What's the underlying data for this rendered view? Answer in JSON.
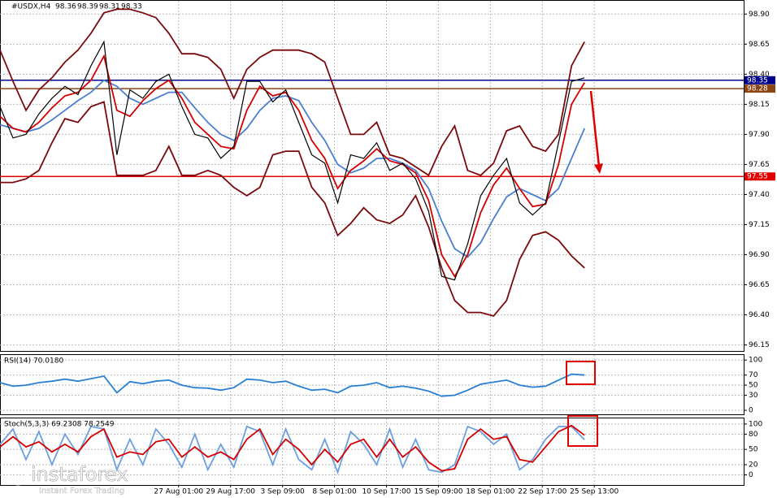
{
  "chart_data": [
    {
      "type": "line",
      "symbol": "#USDX,H4",
      "ohlc": [
        98.36,
        98.39,
        98.31,
        98.33
      ],
      "x": [
        0,
        4,
        8,
        12,
        16,
        20,
        24,
        28,
        32,
        36,
        40,
        44,
        48,
        52,
        56,
        60,
        64,
        68,
        72,
        76,
        80,
        84,
        88,
        92,
        96,
        100,
        104,
        108,
        112,
        116,
        120,
        124,
        128,
        132,
        136,
        140,
        144,
        148,
        152,
        156,
        160,
        164,
        168,
        172,
        176,
        180
      ],
      "xlim": [
        0,
        229
      ],
      "ylim": [
        96.1,
        99.01
      ],
      "yticks": [
        {
          "value": 98.9,
          "label": "98.90"
        },
        {
          "value": 98.65,
          "label": "98.65"
        },
        {
          "value": 98.4,
          "label": "98.40"
        },
        {
          "value": 98.15,
          "label": "98.15"
        },
        {
          "value": 97.9,
          "label": "97.90"
        },
        {
          "value": 97.65,
          "label": "97.65"
        },
        {
          "value": 97.4,
          "label": "97.40"
        },
        {
          "value": 97.15,
          "label": "97.15"
        },
        {
          "value": 96.9,
          "label": "96.90"
        },
        {
          "value": 96.65,
          "label": "96.65"
        },
        {
          "value": 96.4,
          "label": "96.40"
        },
        {
          "value": 96.15,
          "label": "96.15"
        }
      ],
      "grid": true,
      "series": [
        {
          "color": "#7a0a0a",
          "values": [
            98.6,
            98.34,
            98.1,
            98.27,
            98.37,
            98.5,
            98.6,
            98.74,
            98.91,
            98.94,
            98.94,
            98.91,
            98.87,
            98.74,
            98.57,
            98.57,
            98.54,
            98.44,
            98.2,
            98.44,
            98.54,
            98.6,
            98.6,
            98.6,
            98.57,
            98.5,
            98.2,
            97.9,
            97.9,
            98.0,
            97.73,
            97.7,
            97.63,
            97.56,
            97.8,
            97.97,
            97.6,
            97.56,
            97.66,
            97.93,
            97.97,
            97.8,
            97.76,
            97.9,
            98.47,
            98.67
          ]
        },
        {
          "color": "#7a0a0a",
          "values": [
            97.5,
            97.5,
            97.53,
            97.6,
            97.83,
            98.03,
            98.0,
            98.13,
            98.17,
            97.56,
            97.56,
            97.56,
            97.6,
            97.8,
            97.56,
            97.56,
            97.6,
            97.56,
            97.46,
            97.39,
            97.46,
            97.73,
            97.76,
            97.76,
            97.46,
            97.33,
            97.06,
            97.16,
            97.29,
            97.19,
            97.16,
            97.23,
            97.39,
            97.13,
            96.79,
            96.52,
            96.42,
            96.42,
            96.39,
            96.52,
            96.86,
            97.06,
            97.09,
            97.02,
            96.89,
            96.79
          ]
        },
        {
          "color": "#4a7fd0",
          "values": [
            97.98,
            97.95,
            97.92,
            97.95,
            98.02,
            98.1,
            98.18,
            98.25,
            98.35,
            98.3,
            98.2,
            98.15,
            98.2,
            98.25,
            98.25,
            98.12,
            98.0,
            97.9,
            97.85,
            97.95,
            98.1,
            98.2,
            98.22,
            98.18,
            98.0,
            97.85,
            97.65,
            97.58,
            97.62,
            97.7,
            97.7,
            97.66,
            97.6,
            97.45,
            97.18,
            96.95,
            96.88,
            97.0,
            97.2,
            97.38,
            97.45,
            97.4,
            97.35,
            97.45,
            97.7,
            97.95
          ]
        },
        {
          "color": "#d40000",
          "values": [
            98.05,
            97.95,
            97.92,
            98.0,
            98.12,
            98.22,
            98.25,
            98.35,
            98.55,
            98.1,
            98.05,
            98.18,
            98.28,
            98.35,
            98.2,
            98.0,
            97.9,
            97.8,
            97.78,
            98.1,
            98.3,
            98.22,
            98.25,
            98.1,
            97.85,
            97.7,
            97.45,
            97.6,
            97.68,
            97.78,
            97.68,
            97.65,
            97.58,
            97.35,
            96.9,
            96.72,
            96.9,
            97.25,
            97.48,
            97.62,
            97.45,
            97.3,
            97.32,
            97.65,
            98.15,
            98.33
          ]
        },
        {
          "color": "#000000",
          "values": [
            98.13,
            97.87,
            97.9,
            98.07,
            98.2,
            98.3,
            98.23,
            98.47,
            98.67,
            97.73,
            98.27,
            98.2,
            98.34,
            98.4,
            98.13,
            97.9,
            97.87,
            97.7,
            97.8,
            98.34,
            98.34,
            98.17,
            98.27,
            98.0,
            97.73,
            97.66,
            97.33,
            97.73,
            97.7,
            97.83,
            97.6,
            97.66,
            97.53,
            97.26,
            96.72,
            96.69,
            96.99,
            97.39,
            97.56,
            97.7,
            97.33,
            97.23,
            97.33,
            97.83,
            98.34,
            98.37
          ]
        }
      ],
      "hlines": [
        {
          "value": 98.35,
          "color": "#00008b"
        },
        {
          "value": 98.28,
          "color": "#8b4513"
        },
        {
          "value": 97.55,
          "color": "#e00000"
        }
      ]
    },
    {
      "type": "line",
      "title": "RSI(14) 70.0180",
      "x": [
        0,
        4,
        8,
        12,
        16,
        20,
        24,
        28,
        32,
        36,
        40,
        44,
        48,
        52,
        56,
        60,
        64,
        68,
        72,
        76,
        80,
        84,
        88,
        92,
        96,
        100,
        104,
        108,
        112,
        116,
        120,
        124,
        128,
        132,
        136,
        140,
        144,
        148,
        152,
        156,
        160,
        164,
        168,
        172,
        176,
        180
      ],
      "xlim": [
        0,
        229
      ],
      "ylim": [
        -8,
        110
      ],
      "yticks": [
        100,
        70,
        50,
        30,
        0
      ],
      "grid": true,
      "series": [
        {
          "color": "#2a7fd4",
          "values": [
            55,
            48,
            50,
            55,
            58,
            62,
            58,
            63,
            68,
            35,
            57,
            53,
            58,
            60,
            50,
            45,
            44,
            40,
            45,
            62,
            60,
            55,
            58,
            48,
            40,
            42,
            35,
            48,
            50,
            55,
            45,
            48,
            44,
            38,
            28,
            30,
            40,
            52,
            56,
            60,
            50,
            46,
            48,
            60,
            72,
            70
          ]
        }
      ]
    },
    {
      "type": "line",
      "title": "Stoch(5,3,3) 69.2308 78.2549",
      "x": [
        0,
        4,
        8,
        12,
        16,
        20,
        24,
        28,
        32,
        36,
        40,
        44,
        48,
        52,
        56,
        60,
        64,
        68,
        72,
        76,
        80,
        84,
        88,
        92,
        96,
        100,
        104,
        108,
        112,
        116,
        120,
        124,
        128,
        132,
        136,
        140,
        144,
        148,
        152,
        156,
        160,
        164,
        168,
        172,
        176,
        180
      ],
      "xlim": [
        0,
        229
      ],
      "ylim": [
        -20,
        111
      ],
      "yticks": [
        100,
        80,
        50,
        20,
        0
      ],
      "grid": true,
      "xticks": [
        {
          "value": 55,
          "label": "27 Aug 01:00"
        },
        {
          "value": 71,
          "label": "29 Aug 17:00"
        },
        {
          "value": 87,
          "label": "3 Sep 09:00"
        },
        {
          "value": 103,
          "label": "8 Sep 01:00"
        },
        {
          "value": 119,
          "label": "10 Sep 17:00"
        },
        {
          "value": 135,
          "label": "15 Sep 09:00"
        },
        {
          "value": 151,
          "label": "18 Sep 01:00"
        },
        {
          "value": 167,
          "label": "22 Sep 17:00"
        },
        {
          "value": 183,
          "label": "25 Sep 13:00"
        }
      ],
      "series": [
        {
          "color": "#6a9fe0",
          "values": [
            60,
            90,
            30,
            85,
            20,
            80,
            40,
            95,
            90,
            10,
            70,
            20,
            90,
            60,
            15,
            80,
            10,
            60,
            15,
            95,
            85,
            20,
            90,
            30,
            10,
            70,
            5,
            85,
            60,
            20,
            90,
            15,
            70,
            10,
            5,
            20,
            95,
            85,
            60,
            80,
            10,
            30,
            70,
            95,
            95,
            69
          ]
        },
        {
          "color": "#d40000",
          "values": [
            55,
            75,
            55,
            65,
            45,
            60,
            45,
            75,
            90,
            35,
            45,
            40,
            65,
            70,
            35,
            55,
            35,
            45,
            30,
            70,
            90,
            40,
            70,
            50,
            20,
            50,
            25,
            60,
            70,
            35,
            70,
            35,
            55,
            25,
            8,
            12,
            70,
            90,
            70,
            75,
            30,
            25,
            55,
            85,
            97,
            78
          ]
        }
      ]
    }
  ],
  "watermark": {
    "brand": "instaforex",
    "tagline": "Instant Forex Trading"
  }
}
